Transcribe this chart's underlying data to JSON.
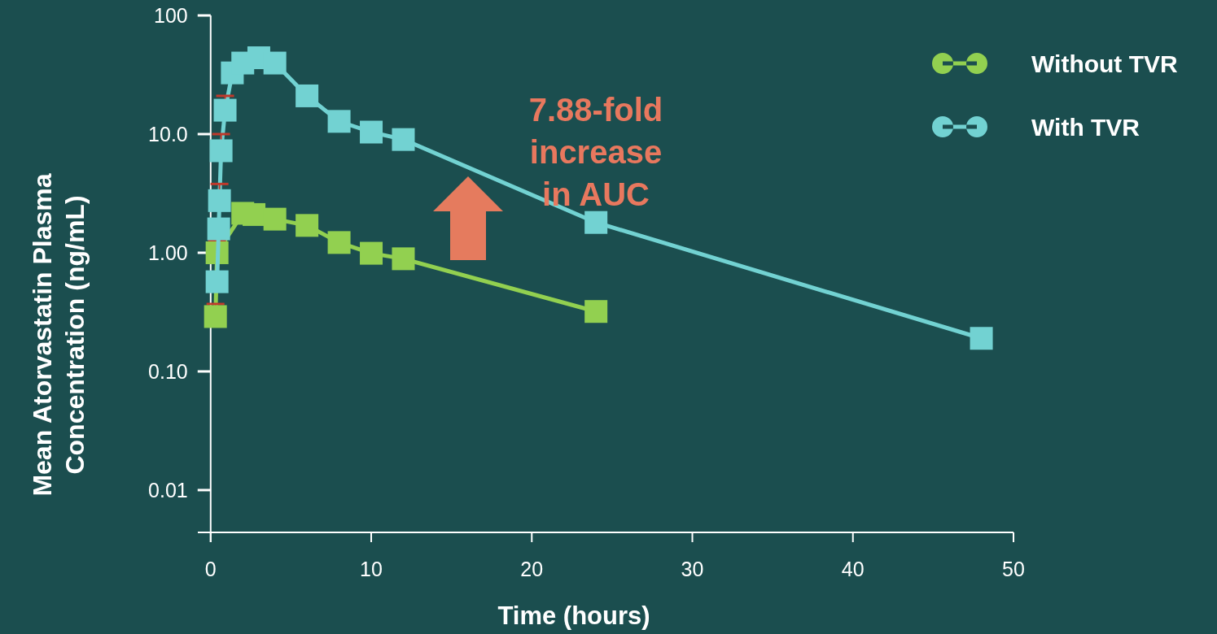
{
  "chart_data": {
    "type": "line",
    "xlabel": "Time (hours)",
    "ylabel": "Mean Atorvastatin Plasma Concentration (ng/mL)",
    "log": "y",
    "xlim": [
      -0.8,
      50
    ],
    "xticks": [
      0,
      10,
      20,
      30,
      40,
      50
    ],
    "ylim": [
      0.0044,
      100
    ],
    "yticks": [
      100,
      {
        "value": 10,
        "label": "10.0"
      },
      {
        "value": 1,
        "label": "1.00"
      },
      {
        "value": 0.1,
        "label": "0.10"
      },
      0.01
    ],
    "legend": "top right",
    "marker": "square",
    "line_style": "solid",
    "grid": false,
    "series": [
      {
        "name": "Without TVR",
        "color": "#92d050",
        "x": [
          0.3,
          0.4,
          2,
          2.7,
          4,
          6,
          8,
          10,
          12,
          24
        ],
        "values": [
          0.29,
          1.0,
          2.15,
          2.1,
          1.92,
          1.7,
          1.22,
          0.99,
          0.89,
          0.32
        ],
        "errors": [
          [
            0.29,
            0.37
          ],
          [
            1.0,
            1.27
          ],
          null,
          null,
          null,
          null,
          null,
          null,
          null,
          null
        ]
      },
      {
        "name": "With TVR",
        "color": "#72d2d2",
        "x": [
          0.4,
          0.5,
          0.55,
          0.65,
          0.9,
          1.35,
          2,
          3,
          4,
          6,
          8,
          10,
          12,
          24,
          48
        ],
        "values": [
          0.57,
          1.59,
          2.75,
          7.24,
          15.9,
          32.8,
          39.7,
          44,
          39.7,
          21,
          12.8,
          10.4,
          9.0,
          1.8,
          0.19
        ],
        "errors": [
          null,
          null,
          [
            2.75,
            3.8
          ],
          [
            7.24,
            10
          ],
          [
            15.9,
            21
          ],
          null,
          null,
          null,
          null,
          null,
          null,
          null,
          null,
          null,
          null
        ]
      }
    ],
    "annotations": [
      "7.88-fold increase in AUC"
    ]
  }
}
